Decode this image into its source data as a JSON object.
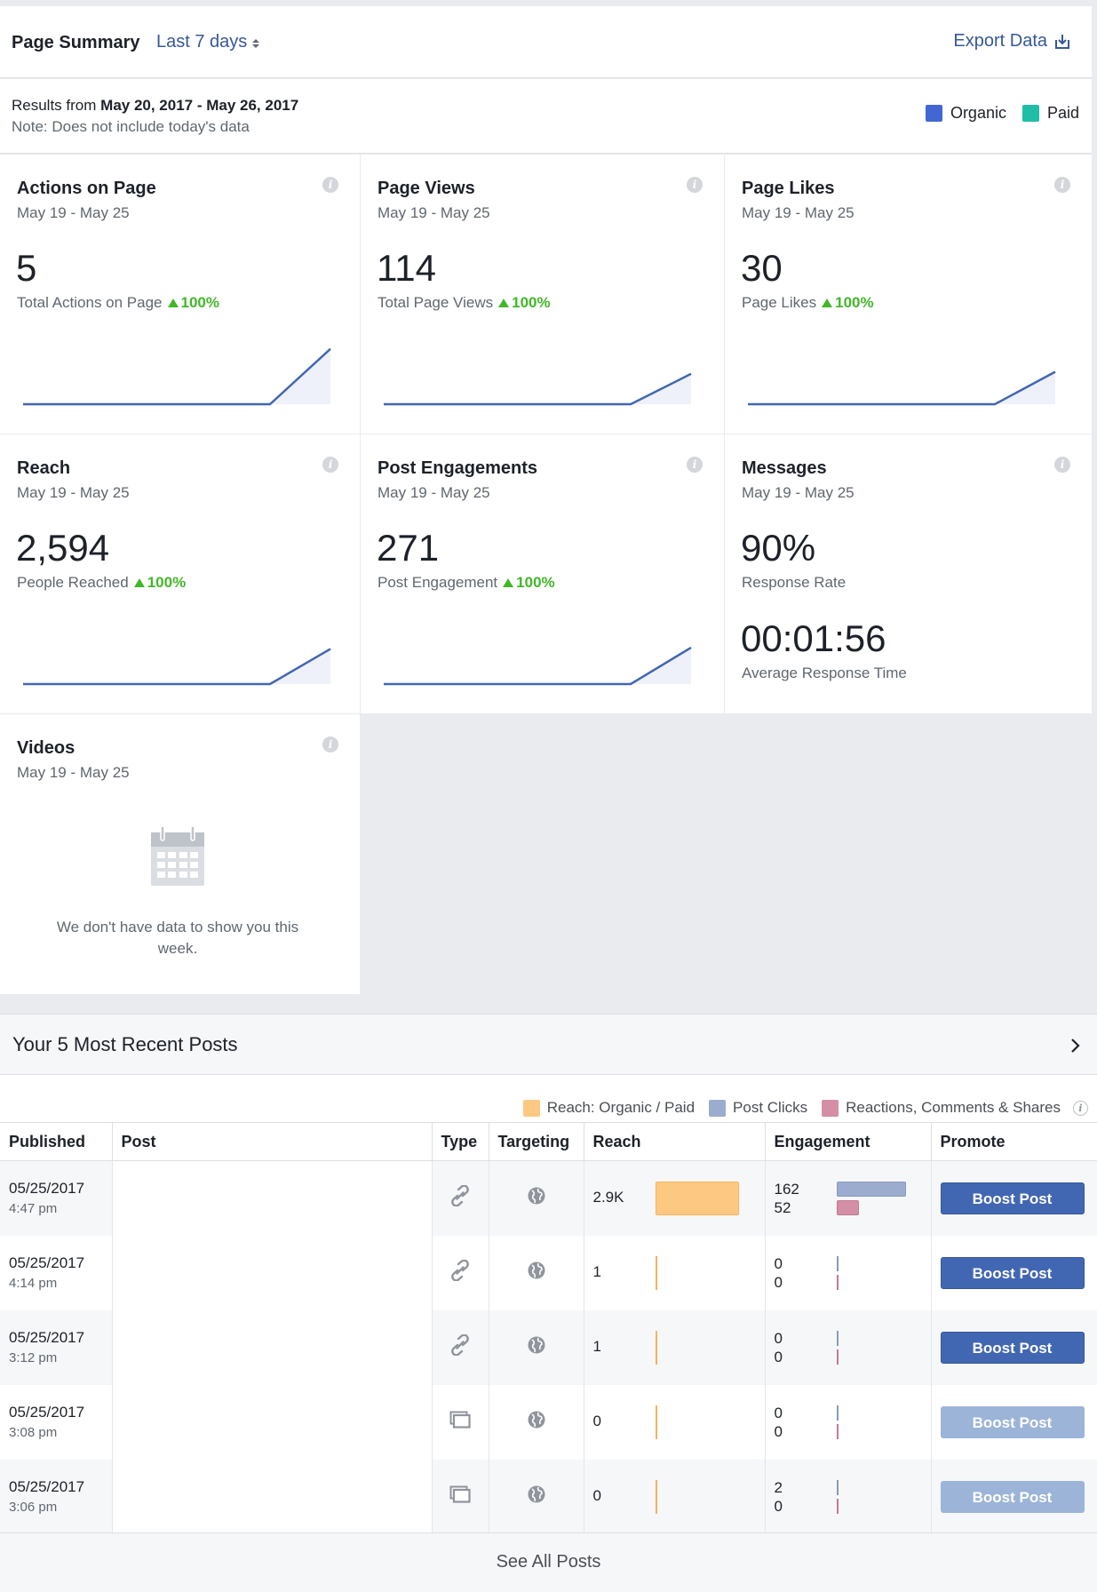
{
  "header": {
    "title": "Page Summary",
    "range": "Last 7 days",
    "export_label": "Export Data"
  },
  "results": {
    "prefix": "Results from",
    "range": "May 20, 2017 - May 26, 2017",
    "note": "Note: Does not include today's data",
    "legend": [
      {
        "label": "Organic",
        "color": "#4267d2"
      },
      {
        "label": "Paid",
        "color": "#1fbea6"
      }
    ]
  },
  "cards": [
    {
      "title": "Actions on Page",
      "date": "May 19 - May 25",
      "value": "5",
      "sub": "Total Actions on Page",
      "change": "100%",
      "spark_end": 0.82
    },
    {
      "title": "Page Views",
      "date": "May 19 - May 25",
      "value": "114",
      "sub": "Total Page Views",
      "change": "100%",
      "spark_end": 0.45
    },
    {
      "title": "Page Likes",
      "date": "May 19 - May 25",
      "value": "30",
      "sub": "Page Likes",
      "change": "100%",
      "spark_end": 0.48
    },
    {
      "title": "Reach",
      "date": "May 19 - May 25",
      "value": "2,594",
      "sub": "People Reached",
      "change": "100%",
      "spark_end": 0.52
    },
    {
      "title": "Post Engagements",
      "date": "May 19 - May 25",
      "value": "271",
      "sub": "Post Engagement",
      "change": "100%",
      "spark_end": 0.54
    },
    {
      "title": "Messages",
      "date": "May 19 - May 25",
      "value": "90%",
      "sub": "Response Rate",
      "value2": "00:01:56",
      "sub2": "Average Response Time"
    },
    {
      "title": "Videos",
      "date": "May 19 - May 25",
      "empty_text": "We don't have data to show you this week."
    }
  ],
  "posts": {
    "title": "Your 5 Most Recent Posts",
    "legend": [
      {
        "label": "Reach: Organic / Paid",
        "color": "#fdc982"
      },
      {
        "label": "Post Clicks",
        "color": "#9cacce"
      },
      {
        "label": "Reactions, Comments & Shares",
        "color": "#d48fa6"
      }
    ],
    "columns": [
      "Published",
      "Post",
      "Type",
      "Targeting",
      "Reach",
      "Engagement",
      "Promote"
    ],
    "rows": [
      {
        "date": "05/25/2017",
        "time": "4:47 pm",
        "type": "link-icon",
        "reach": "2.9K",
        "reach_frac": 1.0,
        "clicks": "162",
        "reactions": "52",
        "clicks_frac": 1.0,
        "reactions_frac": 0.32,
        "boost": "Boost Post",
        "boost_enabled": true
      },
      {
        "date": "05/25/2017",
        "time": "4:14 pm",
        "type": "link-icon",
        "reach": "1",
        "reach_frac": 0.0,
        "clicks": "0",
        "reactions": "0",
        "clicks_frac": 0,
        "reactions_frac": 0,
        "boost": "Boost Post",
        "boost_enabled": true
      },
      {
        "date": "05/25/2017",
        "time": "3:12 pm",
        "type": "link-icon",
        "reach": "1",
        "reach_frac": 0.0,
        "clicks": "0",
        "reactions": "0",
        "clicks_frac": 0,
        "reactions_frac": 0,
        "boost": "Boost Post",
        "boost_enabled": true
      },
      {
        "date": "05/25/2017",
        "time": "3:08 pm",
        "type": "album-icon",
        "reach": "0",
        "reach_frac": 0.0,
        "clicks": "0",
        "reactions": "0",
        "clicks_frac": 0,
        "reactions_frac": 0,
        "boost": "Boost Post",
        "boost_enabled": false
      },
      {
        "date": "05/25/2017",
        "time": "3:06 pm",
        "type": "album-icon",
        "reach": "0",
        "reach_frac": 0.0,
        "clicks": "2",
        "reactions": "0",
        "clicks_frac": 0,
        "reactions_frac": 0,
        "boost": "Boost Post",
        "boost_enabled": false
      }
    ],
    "see_all": "See All Posts"
  }
}
